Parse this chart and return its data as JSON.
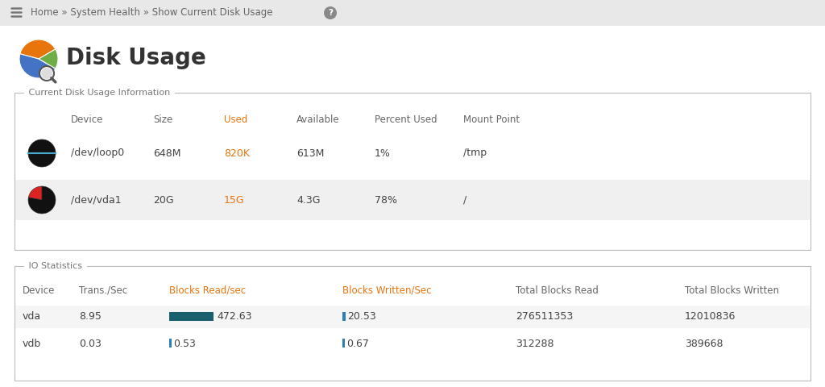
{
  "title": "Disk Usage",
  "nav_text": "Home » System Health » Show Current Disk Usage",
  "bg_color": "#f0f0f0",
  "panel_bg": "#ffffff",
  "section1_title": "Current Disk Usage Information",
  "section2_title": "IO Statistics",
  "disk_headers": [
    "Device",
    "Size",
    "Used",
    "Available",
    "Percent Used",
    "Mount Point"
  ],
  "disk_rows": [
    {
      "device": "/dev/loop0",
      "size": "648M",
      "used": "820K",
      "available": "613M",
      "percent": "1%",
      "mount": "/tmp",
      "pct_val": 1
    },
    {
      "device": "/dev/vda1",
      "size": "20G",
      "used": "15G",
      "available": "4.3G",
      "percent": "78%",
      "mount": "/",
      "pct_val": 78
    }
  ],
  "io_headers": [
    "Device",
    "Trans./Sec",
    "Blocks Read/sec",
    "Blocks Written/Sec",
    "Total Blocks Read",
    "Total Blocks Written"
  ],
  "io_rows": [
    {
      "device": "vda",
      "trans": "8.95",
      "blk_read": "472.63",
      "blk_write": "20.53",
      "total_read": "276511353",
      "total_write": "12010836"
    },
    {
      "device": "vdb",
      "trans": "0.03",
      "blk_read": "0.53",
      "blk_write": "0.67",
      "total_read": "312288",
      "total_write": "389668"
    }
  ],
  "used_label_color": "#e8740c",
  "io_header_color": "#e8740c",
  "teal_bar_color": "#1a5f6e",
  "teal_marker_color": "#2c7fb8",
  "row_alt_color": "#f0f0f0",
  "border_color": "#bbbbbb",
  "text_color": "#444444",
  "header_color": "#666666",
  "nav_bg": "#e8e8e8",
  "nav_text_color": "#666666",
  "section_label_color": "#777777"
}
